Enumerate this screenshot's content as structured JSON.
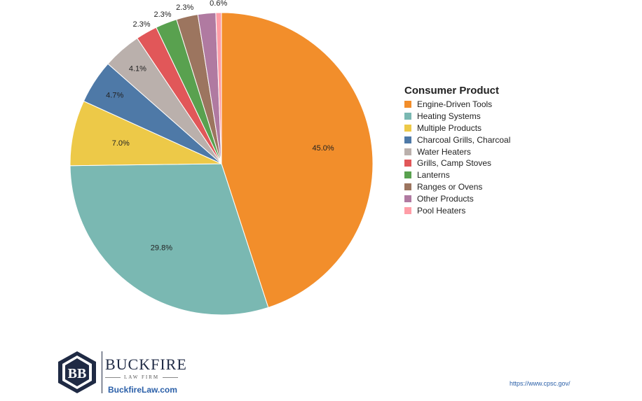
{
  "chart_data": {
    "type": "pie",
    "title": "",
    "legend_title": "Consumer Product",
    "legend_position": "right",
    "start": "top",
    "direction": "clockwise",
    "slices": [
      {
        "name": "Engine-Driven Tools",
        "value": 45.0,
        "label": "45.0%",
        "color": "#F28E2B"
      },
      {
        "name": "Heating Systems",
        "value": 29.8,
        "label": "29.8%",
        "color": "#7AB8B2"
      },
      {
        "name": "Multiple Products",
        "value": 7.0,
        "label": "7.0%",
        "color": "#EDC948"
      },
      {
        "name": "Charcoal Grills, Charcoal",
        "value": 4.7,
        "label": "4.7%",
        "color": "#4E79A7"
      },
      {
        "name": "Water Heaters",
        "value": 4.1,
        "label": "4.1%",
        "color": "#BAB0AC"
      },
      {
        "name": "Grills, Camp Stoves",
        "value": 2.3,
        "label": "2.3%",
        "color": "#E15759"
      },
      {
        "name": "Lanterns",
        "value": 2.3,
        "label": "2.3%",
        "color": "#59A14F"
      },
      {
        "name": "Ranges or Ovens",
        "value": 2.3,
        "label": "2.3%",
        "color": "#9C755F"
      },
      {
        "name": "Other Products",
        "value": 1.9,
        "label": "",
        "color": "#B07AA1"
      },
      {
        "name": "Pool Heaters",
        "value": 0.6,
        "label": "0.6%",
        "color": "#FF9DA7"
      }
    ]
  },
  "branding": {
    "name": "BUCKFIRE",
    "tagline": "LAW FIRM",
    "website": "BuckfireLaw.com",
    "logo_color": "#1f2a44"
  },
  "source": "https://www.cpsc.gov/"
}
